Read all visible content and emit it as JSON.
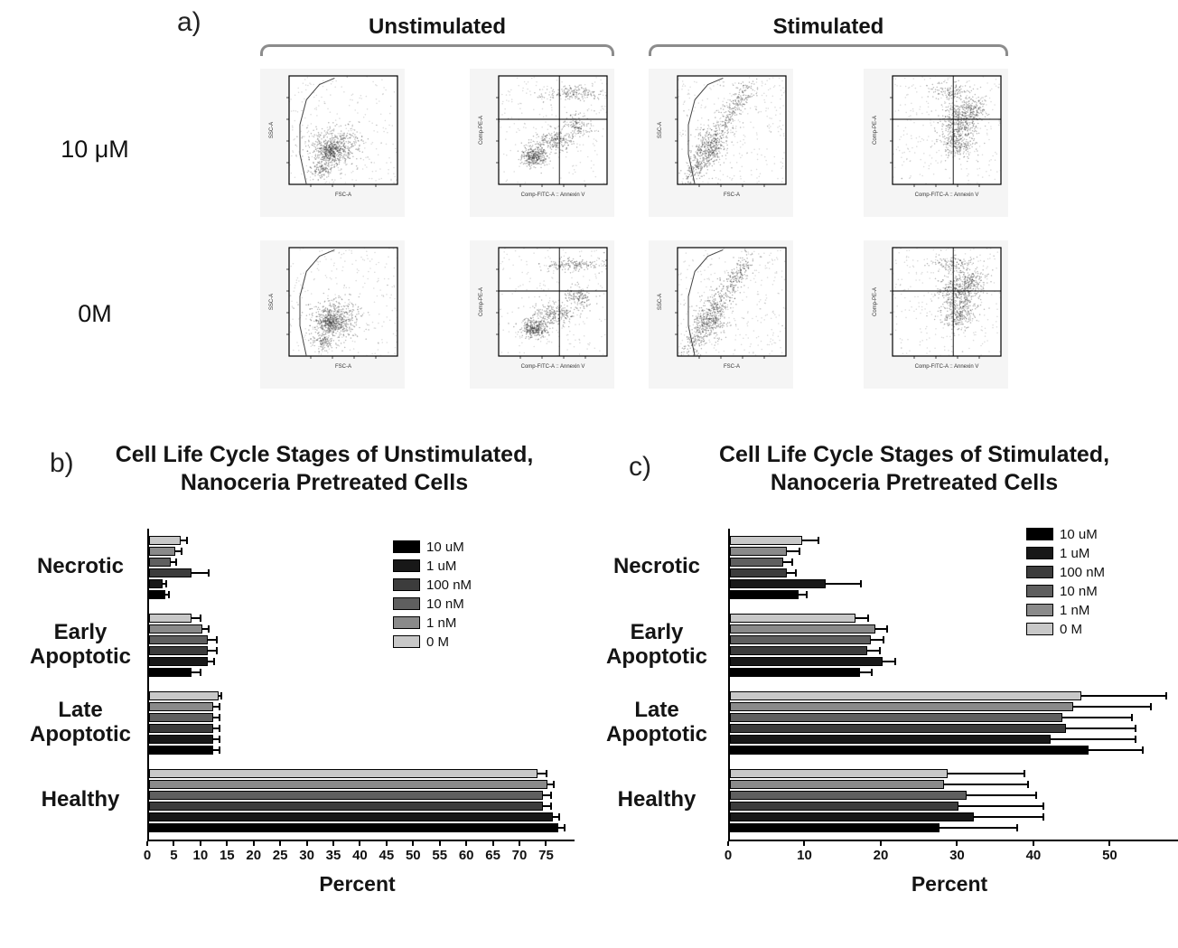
{
  "figure": {
    "panel_a_label": "a)",
    "panel_b_label": "b)",
    "panel_c_label": "c)"
  },
  "panel_a": {
    "group_headers": [
      "Unstimulated",
      "Stimulated"
    ],
    "row_labels": [
      "10 μM",
      "0M"
    ],
    "density_xlabel": "FSC-A",
    "density_ylabel": "SSC-A",
    "quad_xlabel": "Comp-FITC-A :: Annexin V",
    "quad_ylabel": "Comp-PE-A"
  },
  "chart_data": [
    {
      "id": "b",
      "type": "bar",
      "orientation": "horizontal",
      "title_lines": [
        "Cell Life Cycle Stages of Unstimulated,",
        "Nanoceria Pretreated Cells"
      ],
      "categories": [
        "Necrotic",
        "Early Apoptotic",
        "Late Apoptotic",
        "Healthy"
      ],
      "xlabel": "Percent",
      "xticks": [
        0,
        5,
        10,
        15,
        20,
        25,
        30,
        35,
        40,
        45,
        50,
        55,
        60,
        65,
        70,
        75
      ],
      "xlim": [
        0,
        79
      ],
      "grid": false,
      "legend_position": "inside-right",
      "series": [
        {
          "name": "10 uM",
          "color": "#000000",
          "values": [
            3,
            8,
            12,
            77
          ],
          "errors": [
            0.5,
            1.5,
            1,
            1
          ]
        },
        {
          "name": "1 uM",
          "color": "#181818",
          "values": [
            2.5,
            11,
            12,
            76
          ],
          "errors": [
            0.5,
            1,
            1,
            1
          ]
        },
        {
          "name": "100 nM",
          "color": "#3c3c3c",
          "values": [
            8,
            11,
            12,
            74
          ],
          "errors": [
            3,
            1.5,
            1,
            1.5
          ]
        },
        {
          "name": "10 nM",
          "color": "#5f5f5f",
          "values": [
            4,
            11,
            12,
            74
          ],
          "errors": [
            1,
            1.5,
            1,
            1.5
          ]
        },
        {
          "name": "1 nM",
          "color": "#8a8a8a",
          "values": [
            5,
            10,
            12,
            75
          ],
          "errors": [
            1,
            1,
            1,
            1
          ]
        },
        {
          "name": "0 M",
          "color": "#c8c8c8",
          "values": [
            6,
            8,
            13,
            73
          ],
          "errors": [
            1,
            1.5,
            0.5,
            1.5
          ]
        }
      ]
    },
    {
      "id": "c",
      "type": "bar",
      "orientation": "horizontal",
      "title_lines": [
        "Cell Life Cycle Stages of Stimulated,",
        "Nanoceria Pretreated Cells"
      ],
      "categories": [
        "Necrotic",
        "Early Apoptotic",
        "Late Apoptotic",
        "Healthy"
      ],
      "xlabel": "Percent",
      "xticks": [
        0,
        10,
        20,
        30,
        40,
        50
      ],
      "xlim": [
        0,
        58
      ],
      "grid": false,
      "legend_position": "top-right",
      "series": [
        {
          "name": "10 uM",
          "color": "#000000",
          "values": [
            9,
            17,
            47,
            27.5
          ],
          "errors": [
            1,
            1.5,
            7,
            10
          ]
        },
        {
          "name": "1 uM",
          "color": "#181818",
          "values": [
            12.5,
            20,
            42,
            32
          ],
          "errors": [
            4.5,
            1.5,
            11,
            9
          ]
        },
        {
          "name": "100 nM",
          "color": "#3c3c3c",
          "values": [
            7.5,
            18,
            44,
            30
          ],
          "errors": [
            1,
            1.5,
            9,
            11
          ]
        },
        {
          "name": "10 nM",
          "color": "#5f5f5f",
          "values": [
            7,
            18.5,
            43.5,
            31
          ],
          "errors": [
            1,
            1.5,
            9,
            9
          ]
        },
        {
          "name": "1 nM",
          "color": "#8a8a8a",
          "values": [
            7.5,
            19,
            45,
            28
          ],
          "errors": [
            1.5,
            1.5,
            10,
            11
          ]
        },
        {
          "name": "0 M",
          "color": "#c8c8c8",
          "values": [
            9.5,
            16.5,
            46,
            28.5
          ],
          "errors": [
            2,
            1.5,
            11,
            10
          ]
        }
      ]
    }
  ]
}
